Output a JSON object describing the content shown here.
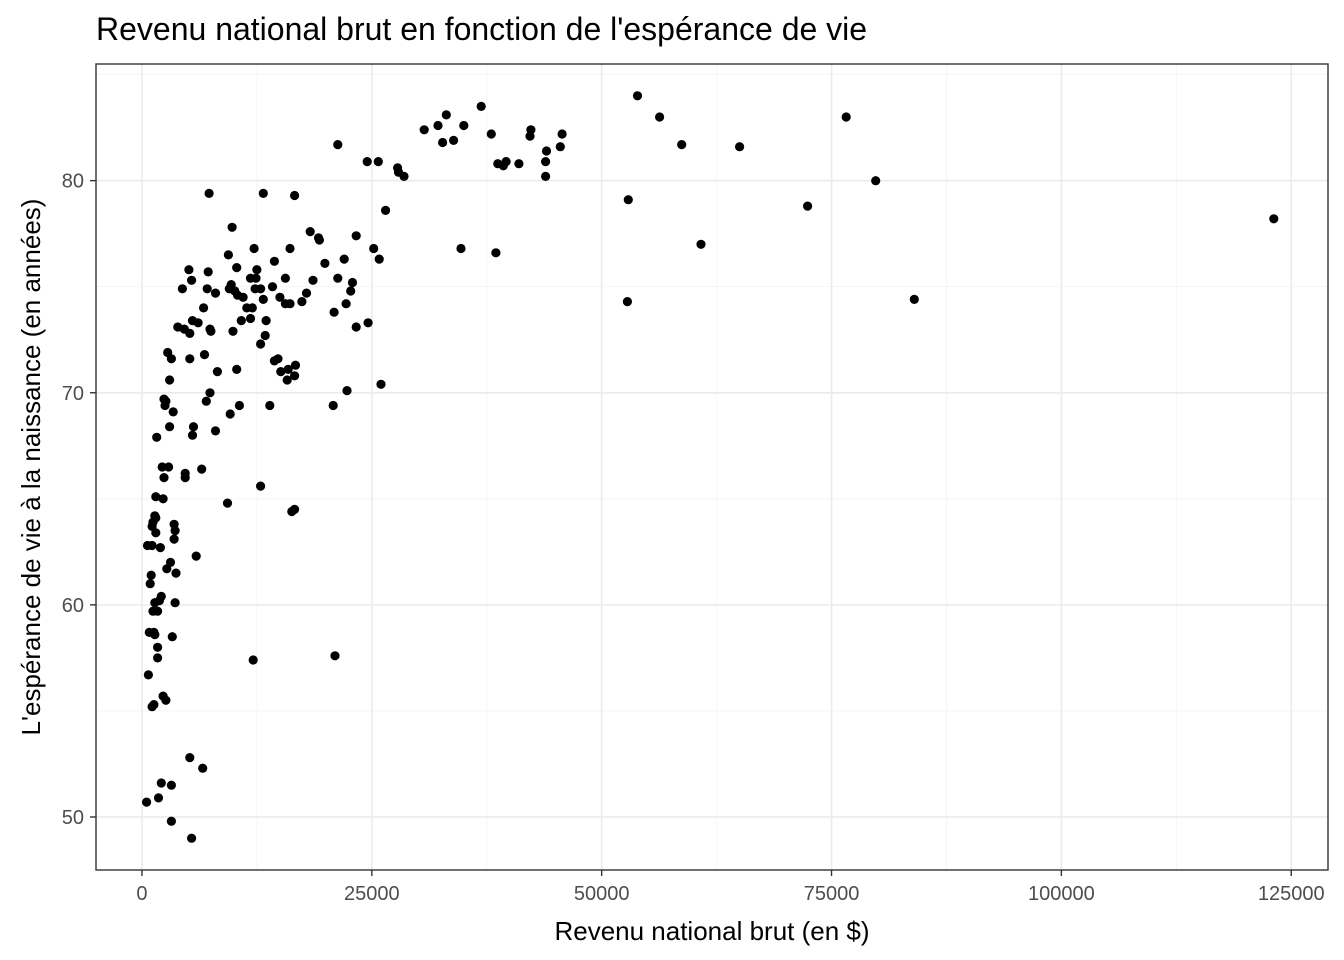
{
  "chart_data": {
    "type": "scatter",
    "title": "Revenu national brut en fonction de l'espérance de vie",
    "xlabel": "Revenu national brut (en $)",
    "ylabel": "L'espérance de vie à la naissance (en années)",
    "xlim": [
      -5000,
      129000
    ],
    "ylim": [
      47.5,
      85.5
    ],
    "x_ticks": [
      0,
      25000,
      50000,
      75000,
      100000,
      125000
    ],
    "x_tick_labels": [
      "0",
      "25000",
      "50000",
      "75000",
      "100000",
      "125000"
    ],
    "y_ticks": [
      50,
      60,
      70,
      80
    ],
    "y_tick_labels": [
      "50",
      "60",
      "70",
      "80"
    ],
    "grid": true,
    "point_color": "#000000",
    "points": [
      [
        123100,
        78.2
      ],
      [
        84000,
        74.4
      ],
      [
        79800,
        80.0
      ],
      [
        76600,
        83.0
      ],
      [
        72400,
        78.8
      ],
      [
        65000,
        81.6
      ],
      [
        60800,
        77.0
      ],
      [
        58700,
        81.7
      ],
      [
        56300,
        83.0
      ],
      [
        53900,
        84.0
      ],
      [
        52900,
        79.1
      ],
      [
        52800,
        74.3
      ],
      [
        45700,
        82.2
      ],
      [
        45500,
        81.6
      ],
      [
        44000,
        81.4
      ],
      [
        43900,
        80.9
      ],
      [
        43900,
        80.2
      ],
      [
        42300,
        82.4
      ],
      [
        42200,
        82.1
      ],
      [
        41000,
        80.8
      ],
      [
        39600,
        80.9
      ],
      [
        39300,
        80.7
      ],
      [
        38700,
        80.8
      ],
      [
        38500,
        76.6
      ],
      [
        38000,
        82.2
      ],
      [
        36900,
        83.5
      ],
      [
        35000,
        82.6
      ],
      [
        34700,
        76.8
      ],
      [
        33900,
        81.9
      ],
      [
        33100,
        83.1
      ],
      [
        32700,
        81.8
      ],
      [
        32200,
        82.6
      ],
      [
        30700,
        82.4
      ],
      [
        28500,
        80.2
      ],
      [
        27900,
        80.4
      ],
      [
        27800,
        80.6
      ],
      [
        26500,
        78.6
      ],
      [
        26000,
        70.4
      ],
      [
        25800,
        76.3
      ],
      [
        25700,
        80.9
      ],
      [
        25200,
        76.8
      ],
      [
        24600,
        73.3
      ],
      [
        24500,
        80.9
      ],
      [
        23300,
        73.1
      ],
      [
        23300,
        77.4
      ],
      [
        22900,
        75.2
      ],
      [
        22700,
        74.8
      ],
      [
        22300,
        70.1
      ],
      [
        22200,
        74.2
      ],
      [
        22000,
        76.3
      ],
      [
        21300,
        75.4
      ],
      [
        21300,
        81.7
      ],
      [
        20900,
        73.8
      ],
      [
        20800,
        69.4
      ],
      [
        21000,
        57.6
      ],
      [
        19900,
        76.1
      ],
      [
        19300,
        77.2
      ],
      [
        19200,
        77.3
      ],
      [
        18600,
        75.3
      ],
      [
        18300,
        77.6
      ],
      [
        17900,
        74.7
      ],
      [
        17400,
        74.3
      ],
      [
        16700,
        71.3
      ],
      [
        16600,
        70.8
      ],
      [
        16600,
        79.3
      ],
      [
        16600,
        64.5
      ],
      [
        16300,
        64.4
      ],
      [
        16100,
        76.8
      ],
      [
        16100,
        74.2
      ],
      [
        15900,
        71.1
      ],
      [
        15800,
        70.6
      ],
      [
        15600,
        74.2
      ],
      [
        15600,
        75.4
      ],
      [
        15100,
        71.0
      ],
      [
        15000,
        74.5
      ],
      [
        14800,
        71.6
      ],
      [
        14400,
        71.5
      ],
      [
        14400,
        76.2
      ],
      [
        14200,
        75.0
      ],
      [
        13900,
        69.4
      ],
      [
        13500,
        73.4
      ],
      [
        13400,
        72.7
      ],
      [
        13200,
        74.4
      ],
      [
        13200,
        79.4
      ],
      [
        12900,
        65.6
      ],
      [
        12900,
        72.3
      ],
      [
        12900,
        74.9
      ],
      [
        12500,
        75.8
      ],
      [
        12400,
        75.4
      ],
      [
        12300,
        74.9
      ],
      [
        12200,
        76.8
      ],
      [
        12100,
        57.4
      ],
      [
        12000,
        74.0
      ],
      [
        11800,
        73.5
      ],
      [
        11800,
        75.4
      ],
      [
        11400,
        74.0
      ],
      [
        11000,
        74.5
      ],
      [
        10800,
        73.4
      ],
      [
        10600,
        69.4
      ],
      [
        10400,
        74.6
      ],
      [
        10300,
        75.9
      ],
      [
        10300,
        71.1
      ],
      [
        10100,
        74.8
      ],
      [
        9900,
        72.9
      ],
      [
        9800,
        77.8
      ],
      [
        9700,
        75.1
      ],
      [
        9600,
        69.0
      ],
      [
        9500,
        74.9
      ],
      [
        9400,
        76.5
      ],
      [
        9300,
        64.8
      ],
      [
        8200,
        71.0
      ],
      [
        8000,
        68.2
      ],
      [
        8000,
        74.7
      ],
      [
        7500,
        72.9
      ],
      [
        7400,
        73.0
      ],
      [
        7400,
        70.0
      ],
      [
        7300,
        79.4
      ],
      [
        7200,
        75.7
      ],
      [
        7000,
        69.6
      ],
      [
        7100,
        74.9
      ],
      [
        6800,
        71.8
      ],
      [
        6700,
        74.0
      ],
      [
        6600,
        52.3
      ],
      [
        6500,
        66.4
      ],
      [
        6100,
        73.3
      ],
      [
        5900,
        62.3
      ],
      [
        5600,
        68.4
      ],
      [
        5500,
        68.0
      ],
      [
        5500,
        73.4
      ],
      [
        5400,
        75.3
      ],
      [
        5400,
        49.0
      ],
      [
        5200,
        52.8
      ],
      [
        5200,
        71.6
      ],
      [
        5200,
        72.8
      ],
      [
        5100,
        75.8
      ],
      [
        4700,
        66.2
      ],
      [
        4700,
        66.0
      ],
      [
        4600,
        73.0
      ],
      [
        4400,
        74.9
      ],
      [
        3900,
        73.1
      ],
      [
        3700,
        61.5
      ],
      [
        3600,
        63.5
      ],
      [
        3600,
        60.1
      ],
      [
        3500,
        63.8
      ],
      [
        3500,
        63.1
      ],
      [
        3400,
        69.1
      ],
      [
        3300,
        58.5
      ],
      [
        3200,
        71.6
      ],
      [
        3200,
        49.8
      ],
      [
        3200,
        51.5
      ],
      [
        3100,
        62.0
      ],
      [
        3000,
        70.6
      ],
      [
        3000,
        68.4
      ],
      [
        2900,
        66.5
      ],
      [
        2800,
        71.9
      ],
      [
        2700,
        61.7
      ],
      [
        2600,
        69.6
      ],
      [
        2600,
        55.5
      ],
      [
        2500,
        69.4
      ],
      [
        2400,
        69.7
      ],
      [
        2400,
        66.0
      ],
      [
        2300,
        65.0
      ],
      [
        2300,
        55.7
      ],
      [
        2200,
        66.5
      ],
      [
        2100,
        51.6
      ],
      [
        2100,
        60.4
      ],
      [
        2000,
        62.7
      ],
      [
        1900,
        60.2
      ],
      [
        1800,
        50.9
      ],
      [
        1700,
        59.7
      ],
      [
        1700,
        58.0
      ],
      [
        1700,
        57.5
      ],
      [
        1600,
        67.9
      ],
      [
        1500,
        64.1
      ],
      [
        1500,
        65.1
      ],
      [
        1500,
        63.4
      ],
      [
        1400,
        64.2
      ],
      [
        1400,
        60.1
      ],
      [
        1400,
        58.6
      ],
      [
        1300,
        58.7
      ],
      [
        1300,
        55.3
      ],
      [
        1200,
        63.9
      ],
      [
        1200,
        59.7
      ],
      [
        1100,
        63.7
      ],
      [
        1100,
        62.8
      ],
      [
        1100,
        55.2
      ],
      [
        1000,
        61.4
      ],
      [
        900,
        61.0
      ],
      [
        800,
        58.7
      ],
      [
        700,
        56.7
      ],
      [
        600,
        62.8
      ],
      [
        500,
        50.7
      ]
    ]
  }
}
